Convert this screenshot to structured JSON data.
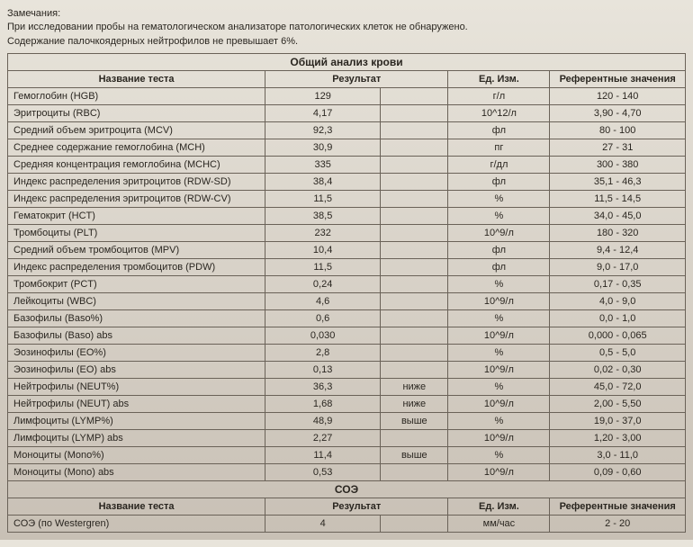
{
  "remarks": {
    "title": "Замечания:",
    "line1": "При исследовании пробы на гематологическом анализаторе патологических клеток не обнаружено.",
    "line2": "Содержание палочкоядерных нейтрофилов не превышает 6%."
  },
  "section1": {
    "title": "Общий анализ крови",
    "headers": {
      "name": "Название теста",
      "result": "Результат",
      "unit": "Ед. Изм.",
      "ref": "Референтные значения"
    },
    "rows": [
      {
        "name": "Гемоглобин (HGB)",
        "result": "129",
        "flag": "",
        "unit": "г/л",
        "ref": "120 - 140"
      },
      {
        "name": "Эритроциты (RBC)",
        "result": "4,17",
        "flag": "",
        "unit": "10^12/л",
        "ref": "3,90 - 4,70"
      },
      {
        "name": "Средний объем эритроцита (MCV)",
        "result": "92,3",
        "flag": "",
        "unit": "фл",
        "ref": "80 - 100"
      },
      {
        "name": "Среднее содержание гемоглобина (MCH)",
        "result": "30,9",
        "flag": "",
        "unit": "пг",
        "ref": "27 - 31"
      },
      {
        "name": "Средняя концентрация гемоглобина (MCHC)",
        "result": "335",
        "flag": "",
        "unit": "г/дл",
        "ref": "300 - 380"
      },
      {
        "name": "Индекс распределения эритроцитов (RDW-SD)",
        "result": "38,4",
        "flag": "",
        "unit": "фл",
        "ref": "35,1 - 46,3"
      },
      {
        "name": "Индекс распределения эритроцитов (RDW-CV)",
        "result": "11,5",
        "flag": "",
        "unit": "%",
        "ref": "11,5 - 14,5"
      },
      {
        "name": "Гематокрит (HCT)",
        "result": "38,5",
        "flag": "",
        "unit": "%",
        "ref": "34,0 - 45,0"
      },
      {
        "name": "Тромбоциты (PLT)",
        "result": "232",
        "flag": "",
        "unit": "10^9/л",
        "ref": "180 - 320"
      },
      {
        "name": "Средний объем тромбоцитов (MPV)",
        "result": "10,4",
        "flag": "",
        "unit": "фл",
        "ref": "9,4 - 12,4"
      },
      {
        "name": "Индекс распределения тромбоцитов (PDW)",
        "result": "11,5",
        "flag": "",
        "unit": "фл",
        "ref": "9,0 - 17,0"
      },
      {
        "name": "Тромбокрит (PCT)",
        "result": "0,24",
        "flag": "",
        "unit": "%",
        "ref": "0,17 - 0,35"
      },
      {
        "name": "Лейкоциты (WBC)",
        "result": "4,6",
        "flag": "",
        "unit": "10^9/л",
        "ref": "4,0 - 9,0"
      },
      {
        "name": "Базофилы (Baso%)",
        "result": "0,6",
        "flag": "",
        "unit": "%",
        "ref": "0,0 - 1,0"
      },
      {
        "name": "Базофилы (Baso) abs",
        "result": "0,030",
        "flag": "",
        "unit": "10^9/л",
        "ref": "0,000 - 0,065"
      },
      {
        "name": "Эозинофилы (EO%)",
        "result": "2,8",
        "flag": "",
        "unit": "%",
        "ref": "0,5 - 5,0"
      },
      {
        "name": "Эозинофилы (EO) abs",
        "result": "0,13",
        "flag": "",
        "unit": "10^9/л",
        "ref": "0,02 - 0,30"
      },
      {
        "name": "Нейтрофилы (NEUT%)",
        "result": "36,3",
        "flag": "ниже",
        "unit": "%",
        "ref": "45,0 - 72,0"
      },
      {
        "name": "Нейтрофилы (NEUT) abs",
        "result": "1,68",
        "flag": "ниже",
        "unit": "10^9/л",
        "ref": "2,00 - 5,50"
      },
      {
        "name": "Лимфоциты (LYMP%)",
        "result": "48,9",
        "flag": "выше",
        "unit": "%",
        "ref": "19,0 - 37,0"
      },
      {
        "name": "Лимфоциты (LYMP) abs",
        "result": "2,27",
        "flag": "",
        "unit": "10^9/л",
        "ref": "1,20 - 3,00"
      },
      {
        "name": "Моноциты (Mono%)",
        "result": "11,4",
        "flag": "выше",
        "unit": "%",
        "ref": "3,0 - 11,0"
      },
      {
        "name": "Моноциты (Mono) abs",
        "result": "0,53",
        "flag": "",
        "unit": "10^9/л",
        "ref": "0,09 - 0,60"
      }
    ]
  },
  "section2": {
    "title": "СОЭ",
    "headers": {
      "name": "Название теста",
      "result": "Результат",
      "unit": "Ед. Изм.",
      "ref": "Референтные значения"
    },
    "rows": [
      {
        "name": "СОЭ (по Westergren)",
        "result": "4",
        "flag": "",
        "unit": "мм/час",
        "ref": "2 - 20"
      }
    ]
  }
}
